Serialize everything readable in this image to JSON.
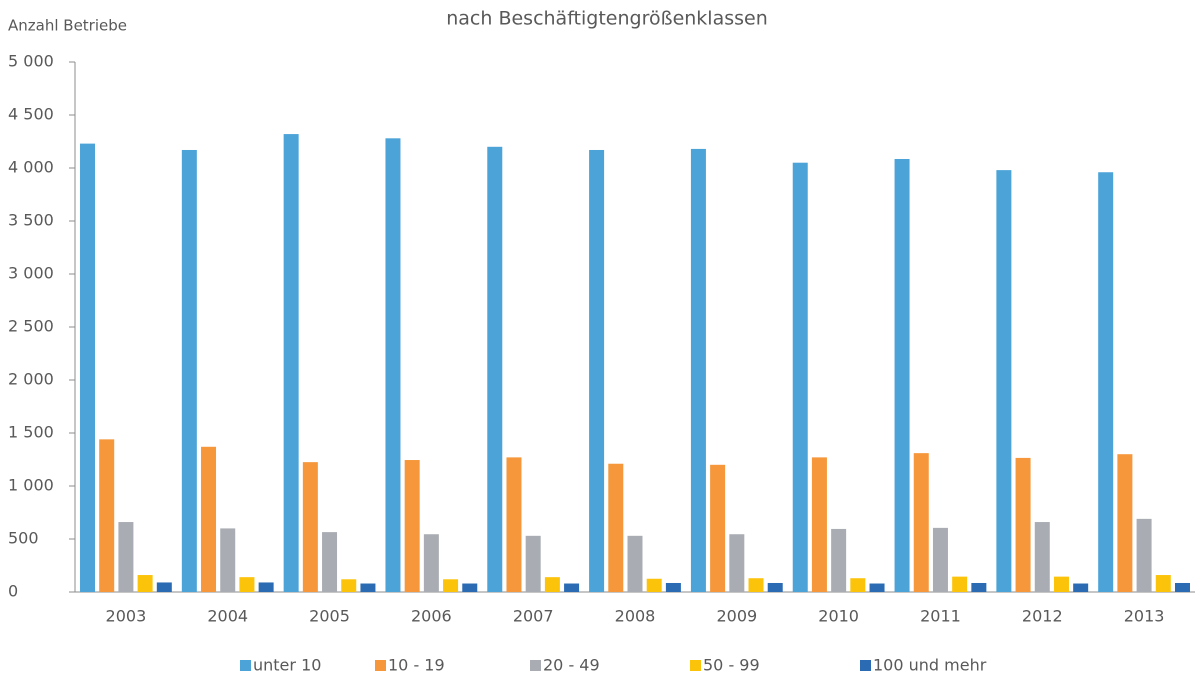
{
  "chart_data": {
    "type": "bar",
    "title": "nach Beschäftigtengrößenklassen",
    "y_label": "Anzahl Betriebe",
    "categories": [
      "2003",
      "2004",
      "2005",
      "2006",
      "2007",
      "2008",
      "2009",
      "2010",
      "2011",
      "2012",
      "2013"
    ],
    "series": [
      {
        "name": "unter 10",
        "color": "#4ba3d8",
        "values": [
          4230,
          4170,
          4320,
          4280,
          4200,
          4170,
          4180,
          4050,
          4085,
          3980,
          3960
        ]
      },
      {
        "name": "10 - 19",
        "color": "#f5973a",
        "values": [
          1440,
          1370,
          1225,
          1245,
          1270,
          1210,
          1200,
          1270,
          1310,
          1265,
          1300
        ]
      },
      {
        "name": "20 - 49",
        "color": "#a9adb3",
        "values": [
          660,
          600,
          565,
          545,
          530,
          530,
          545,
          595,
          605,
          660,
          690
        ]
      },
      {
        "name": "50 - 99",
        "color": "#fcc30b",
        "values": [
          160,
          140,
          120,
          120,
          140,
          125,
          130,
          130,
          145,
          145,
          160
        ]
      },
      {
        "name": "100 und mehr",
        "color": "#2a6bb4",
        "values": [
          90,
          90,
          80,
          80,
          80,
          85,
          85,
          80,
          85,
          80,
          85
        ]
      }
    ],
    "ylim": [
      0,
      5000
    ],
    "yticks": [
      0,
      500,
      {
        "value": 1000,
        "label": "1 000"
      },
      {
        "value": 1500,
        "label": "1 500"
      },
      {
        "value": 2000,
        "label": "2 000"
      },
      {
        "value": 2500,
        "label": "2 500"
      },
      {
        "value": 3000,
        "label": "3 000"
      },
      {
        "value": 3500,
        "label": "3 500"
      },
      {
        "value": 4000,
        "label": "4 000"
      },
      {
        "value": 4500,
        "label": "4 500"
      },
      {
        "value": 5000,
        "label": "5 000"
      }
    ],
    "legend": "bottom"
  }
}
